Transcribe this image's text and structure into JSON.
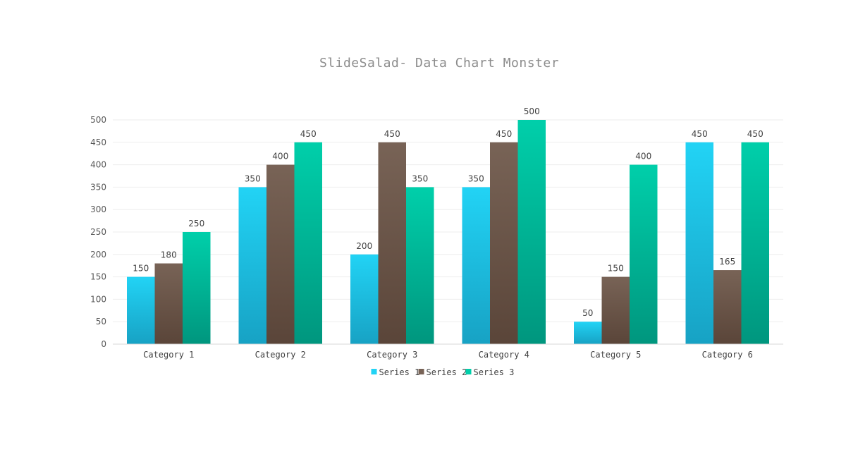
{
  "chart_data": {
    "type": "bar",
    "title": "SlideSalad- Data Chart Monster",
    "xlabel": "",
    "ylabel": "",
    "categories": [
      "Category 1",
      "Category 2",
      "Category 3",
      "Category 4",
      "Category 5",
      "Category 6"
    ],
    "series": [
      {
        "name": "Series 1",
        "values": [
          150,
          350,
          200,
          350,
          50,
          450
        ],
        "color": "#22d3f5",
        "color_bottom": "#17a2c4"
      },
      {
        "name": "Series 2",
        "values": [
          180,
          400,
          450,
          450,
          150,
          165
        ],
        "color": "#786356",
        "color_bottom": "#5a4539"
      },
      {
        "name": "Series 3",
        "values": [
          250,
          450,
          350,
          500,
          400,
          450
        ],
        "color": "#00cfaa",
        "color_bottom": "#00967e"
      }
    ],
    "ylim": [
      0,
      500
    ],
    "yticks": [
      0,
      50,
      100,
      150,
      200,
      250,
      300,
      350,
      400,
      450,
      500
    ],
    "grid": true,
    "legend": "bottom",
    "data_labels": true
  }
}
